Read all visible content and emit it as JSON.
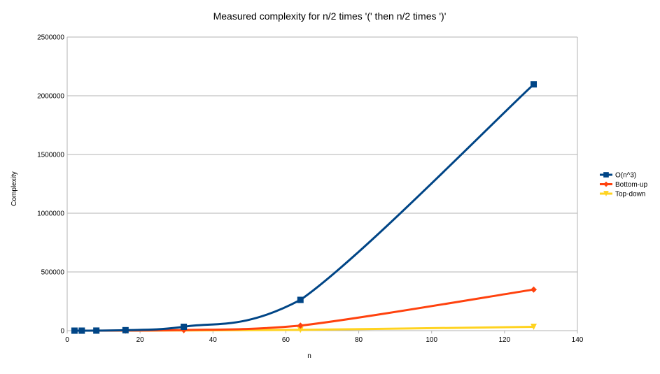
{
  "chart_data": {
    "type": "line",
    "title": "Measured complexity for n/2 times '(' then n/2 times ')'",
    "xlabel": "n",
    "ylabel": "Complexity",
    "xlim": [
      0,
      140
    ],
    "ylim": [
      0,
      2500000
    ],
    "x_ticks": [
      0,
      20,
      40,
      60,
      80,
      100,
      120,
      140
    ],
    "y_ticks": [
      0,
      500000,
      1000000,
      1500000,
      2000000,
      2500000
    ],
    "grid": "horizontal",
    "legend_position": "right",
    "series": [
      {
        "name": "O(n^3)",
        "color": "#004586",
        "marker": "square",
        "x": [
          2,
          4,
          8,
          16,
          32,
          64,
          128
        ],
        "values": [
          8,
          64,
          512,
          4096,
          32768,
          262144,
          2097152
        ]
      },
      {
        "name": "Bottom-up",
        "color": "#ff420e",
        "marker": "diamond",
        "x": [
          2,
          4,
          8,
          16,
          32,
          64,
          128
        ],
        "values": [
          2,
          10,
          60,
          500,
          5000,
          43000,
          350000
        ]
      },
      {
        "name": "Top-down",
        "color": "#ffd320",
        "marker": "triangle-down",
        "x": [
          2,
          4,
          8,
          16,
          32,
          64,
          128
        ],
        "values": [
          2,
          6,
          30,
          200,
          1500,
          7000,
          33000
        ]
      }
    ]
  }
}
